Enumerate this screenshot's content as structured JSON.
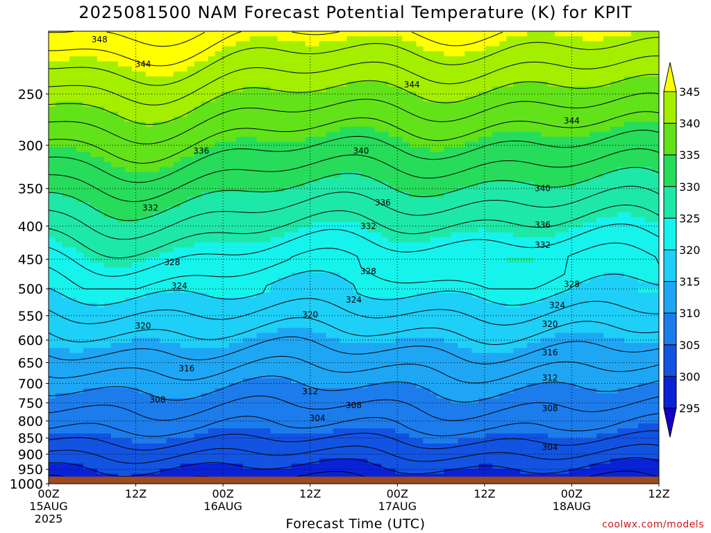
{
  "chart_data": {
    "type": "heatmap",
    "title": "2025081500 NAM Forecast Potential Temperature (K) for KPIT",
    "xlabel": "Forecast Time (UTC)",
    "ylabel": "",
    "credit": "coolwx.com/models",
    "x_ticks": [
      {
        "hour": 0,
        "line1": "00Z",
        "line2": "15AUG",
        "line3": "2025"
      },
      {
        "hour": 12,
        "line1": "12Z",
        "line2": "",
        "line3": ""
      },
      {
        "hour": 24,
        "line1": "00Z",
        "line2": "16AUG",
        "line3": ""
      },
      {
        "hour": 36,
        "line1": "12Z",
        "line2": "",
        "line3": ""
      },
      {
        "hour": 48,
        "line1": "00Z",
        "line2": "17AUG",
        "line3": ""
      },
      {
        "hour": 60,
        "line1": "12Z",
        "line2": "",
        "line3": ""
      },
      {
        "hour": 72,
        "line1": "00Z",
        "line2": "18AUG",
        "line3": ""
      },
      {
        "hour": 84,
        "line1": "12Z",
        "line2": "",
        "line3": ""
      }
    ],
    "xlim": [
      0,
      84
    ],
    "y_ticks": [
      250,
      300,
      350,
      400,
      450,
      500,
      550,
      600,
      650,
      700,
      750,
      800,
      850,
      900,
      950,
      1000
    ],
    "ylim": [
      200,
      1000
    ],
    "y_scale": "log-pressure",
    "surface_pressure": 975,
    "colorbar": {
      "levels": [
        295,
        300,
        305,
        310,
        315,
        320,
        325,
        330,
        335,
        340,
        345
      ],
      "labels": [
        "295",
        "300",
        "305",
        "310",
        "315",
        "320",
        "325",
        "330",
        "335",
        "340",
        "345"
      ],
      "colors": [
        "#1200c8",
        "#0a22d6",
        "#1253e2",
        "#1c7cec",
        "#1ea6f4",
        "#1ecff8",
        "#16f2ec",
        "#1ee8a8",
        "#26dc5a",
        "#62e218",
        "#a4ee00",
        "#ffff00"
      ]
    },
    "surface_color": "#9c4a24",
    "contour_labels": [
      {
        "value": "348",
        "hour": 7,
        "p": 206
      },
      {
        "value": "344",
        "hour": 13,
        "p": 225
      },
      {
        "value": "344",
        "hour": 50,
        "p": 242
      },
      {
        "value": "344",
        "hour": 72,
        "p": 275
      },
      {
        "value": "340",
        "hour": 43,
        "p": 306
      },
      {
        "value": "340",
        "hour": 68,
        "p": 350
      },
      {
        "value": "336",
        "hour": 21,
        "p": 306
      },
      {
        "value": "336",
        "hour": 46,
        "p": 368
      },
      {
        "value": "336",
        "hour": 68,
        "p": 398
      },
      {
        "value": "332",
        "hour": 14,
        "p": 375
      },
      {
        "value": "332",
        "hour": 44,
        "p": 400
      },
      {
        "value": "332",
        "hour": 68,
        "p": 428
      },
      {
        "value": "328",
        "hour": 17,
        "p": 455
      },
      {
        "value": "328",
        "hour": 44,
        "p": 470
      },
      {
        "value": "328",
        "hour": 72,
        "p": 492
      },
      {
        "value": "324",
        "hour": 18,
        "p": 495
      },
      {
        "value": "324",
        "hour": 42,
        "p": 520
      },
      {
        "value": "324",
        "hour": 70,
        "p": 530
      },
      {
        "value": "320",
        "hour": 13,
        "p": 570
      },
      {
        "value": "320",
        "hour": 36,
        "p": 548
      },
      {
        "value": "320",
        "hour": 69,
        "p": 567
      },
      {
        "value": "316",
        "hour": 19,
        "p": 664
      },
      {
        "value": "316",
        "hour": 69,
        "p": 627
      },
      {
        "value": "312",
        "hour": 36,
        "p": 720
      },
      {
        "value": "312",
        "hour": 69,
        "p": 686
      },
      {
        "value": "308",
        "hour": 15,
        "p": 742
      },
      {
        "value": "308",
        "hour": 42,
        "p": 757
      },
      {
        "value": "308",
        "hour": 69,
        "p": 765
      },
      {
        "value": "304",
        "hour": 37,
        "p": 792
      },
      {
        "value": "304",
        "hour": 69,
        "p": 878
      }
    ]
  }
}
